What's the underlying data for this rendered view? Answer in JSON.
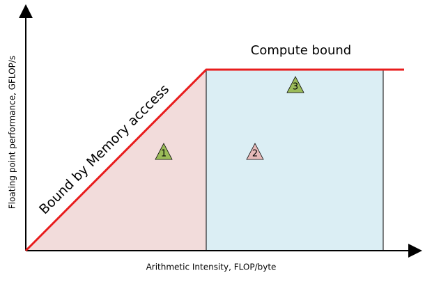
{
  "x_axis_label": "Arithmetic Intensity, FLOP/byte",
  "y_axis_label": "Floating point performance, GFLOP/s",
  "regions": {
    "memory_bound": "Bound by Memory acccess",
    "compute_bound": "Compute bound"
  },
  "markers": [
    "1",
    "2",
    "3"
  ]
}
